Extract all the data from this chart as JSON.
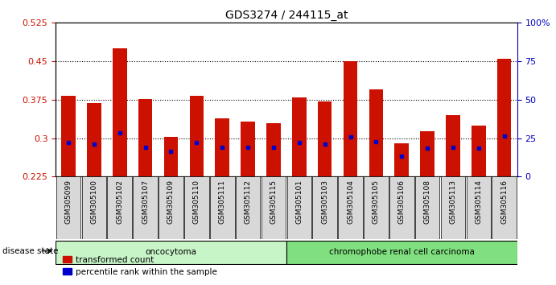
{
  "title": "GDS3274 / 244115_at",
  "samples": [
    "GSM305099",
    "GSM305100",
    "GSM305102",
    "GSM305107",
    "GSM305109",
    "GSM305110",
    "GSM305111",
    "GSM305112",
    "GSM305115",
    "GSM305101",
    "GSM305103",
    "GSM305104",
    "GSM305105",
    "GSM305106",
    "GSM305108",
    "GSM305113",
    "GSM305114",
    "GSM305116"
  ],
  "transformed_count": [
    0.383,
    0.368,
    0.475,
    0.376,
    0.302,
    0.382,
    0.338,
    0.332,
    0.33,
    0.38,
    0.372,
    0.45,
    0.395,
    0.29,
    0.313,
    0.345,
    0.325,
    0.455
  ],
  "percentile_rank": [
    0.292,
    0.288,
    0.31,
    0.283,
    0.275,
    0.291,
    0.282,
    0.282,
    0.282,
    0.291,
    0.288,
    0.302,
    0.293,
    0.265,
    0.28,
    0.282,
    0.281,
    0.304
  ],
  "ymin": 0.225,
  "ymax": 0.525,
  "yticks_left": [
    0.225,
    0.3,
    0.375,
    0.45,
    0.525
  ],
  "yticks_right_vals": [
    0.225,
    0.3,
    0.375,
    0.45,
    0.525
  ],
  "yticks_right_labels": [
    "0",
    "25",
    "50",
    "75",
    "100%"
  ],
  "groups": [
    {
      "label": "oncocytoma",
      "start": 0,
      "end": 9,
      "color": "#c8f5c8"
    },
    {
      "label": "chromophobe renal cell carcinoma",
      "start": 9,
      "end": 18,
      "color": "#80e080"
    }
  ],
  "bar_color": "#cc1100",
  "blue_color": "#0000cc",
  "bar_width": 0.55,
  "background_color": "#ffffff",
  "ylabel_color": "#cc1100",
  "ylabel2_color": "#0000bb",
  "legend_items": [
    {
      "label": "transformed count",
      "color": "#cc1100"
    },
    {
      "label": "percentile rank within the sample",
      "color": "#0000cc"
    }
  ],
  "disease_state_label": "disease state",
  "ybase": 0.225,
  "xtick_bg": "#d8d8d8"
}
